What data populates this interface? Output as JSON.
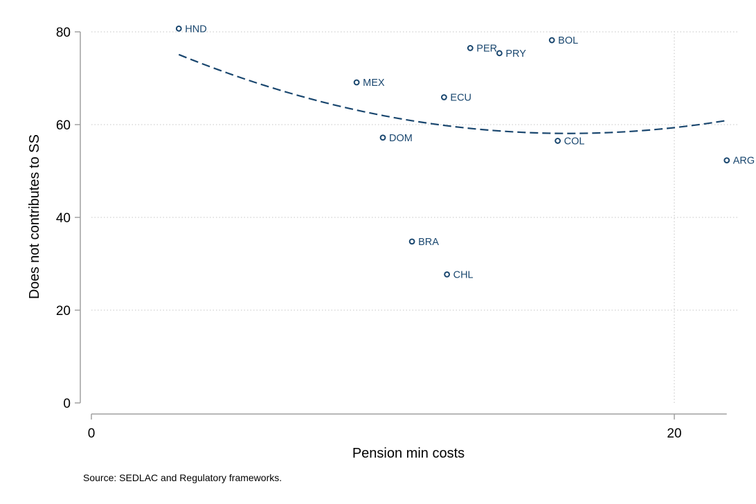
{
  "chart_data": {
    "type": "scatter",
    "xlabel": "Pension min costs",
    "ylabel": "Does not contributes to SS",
    "note": "Source: SEDLAC and Regulatory frameworks.",
    "xlim": [
      0,
      21.8
    ],
    "ylim": [
      0,
      80
    ],
    "x_ticks": [
      0,
      20
    ],
    "y_ticks": [
      0,
      20,
      40,
      60,
      80
    ],
    "grid": true,
    "legend": "none",
    "colors": {
      "marker": "#1a476f",
      "fit_line": "#1a476f",
      "label": "#1a476f",
      "grid": "#d0d0d0",
      "axis": "#a0a0a0"
    },
    "points": [
      {
        "label": "HND",
        "x": 3.0,
        "y": 80.7
      },
      {
        "label": "MEX",
        "x": 9.1,
        "y": 69.1
      },
      {
        "label": "DOM",
        "x": 10.0,
        "y": 57.2
      },
      {
        "label": "BRA",
        "x": 11.0,
        "y": 34.8
      },
      {
        "label": "ECU",
        "x": 12.1,
        "y": 65.9
      },
      {
        "label": "CHL",
        "x": 12.2,
        "y": 27.7
      },
      {
        "label": "PER",
        "x": 13.0,
        "y": 76.5
      },
      {
        "label": "PRY",
        "x": 14.0,
        "y": 75.4
      },
      {
        "label": "BOL",
        "x": 15.8,
        "y": 78.2
      },
      {
        "label": "COL",
        "x": 16.0,
        "y": 56.5
      },
      {
        "label": "ARG",
        "x": 21.8,
        "y": 52.3
      }
    ],
    "fit": {
      "type": "quadratic",
      "x_range": [
        3.0,
        21.8
      ],
      "y_at_points": [
        {
          "x": 3.0,
          "y": 75.1
        },
        {
          "x": 16.3,
          "y": 58.1
        },
        {
          "x": 21.8,
          "y": 60.9
        }
      ]
    }
  }
}
